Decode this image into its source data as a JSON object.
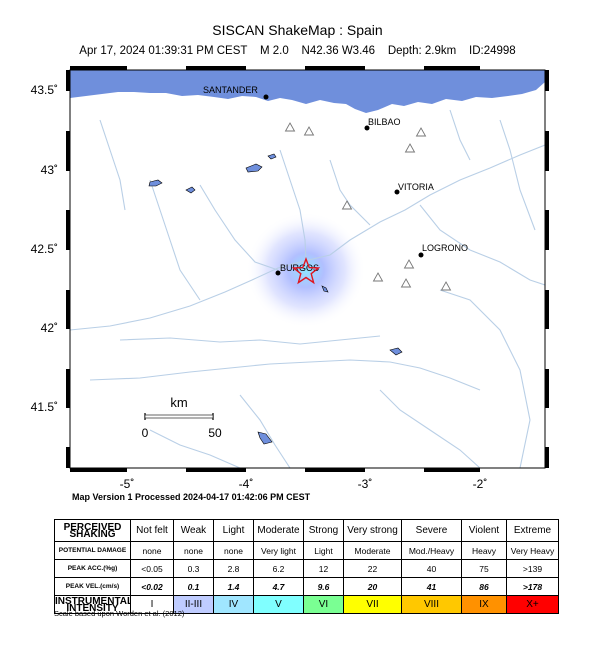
{
  "header": {
    "title": "SISCAN ShakeMap : Spain",
    "subtitle": "Apr 17, 2024 01:39:31 PM CEST    M 2.0    N42.36 W3.46    Depth: 2.9km    ID:24998"
  },
  "map": {
    "lat_ticks": [
      "43.5˚",
      "43˚",
      "42.5˚",
      "42˚",
      "41.5˚"
    ],
    "lon_ticks": [
      "-5˚",
      "-4˚",
      "-3˚",
      "-2˚"
    ],
    "cities": [
      "SANTANDER",
      "BILBAO",
      "VITORIA",
      "LOGRONO",
      "BURGOS"
    ],
    "scale_bar": {
      "unit": "km",
      "start": "0",
      "end": "50"
    },
    "colors": {
      "sea": "#6f8fdc",
      "river": "#b9cfe6",
      "epicenter": "#e0141e",
      "intensity_glow": "#9aa8ff"
    }
  },
  "version_text": "Map Version 1 Processed 2024-04-17 01:42:06 PM CEST",
  "legend": {
    "rows": [
      {
        "head": "PERCEIVED SHAKING",
        "cells": [
          "Not felt",
          "Weak",
          "Light",
          "Moderate",
          "Strong",
          "Very strong",
          "Severe",
          "Violent",
          "Extreme"
        ]
      },
      {
        "head": "POTENTIAL DAMAGE",
        "cells": [
          "none",
          "none",
          "none",
          "Very light",
          "Light",
          "Moderate",
          "Mod./Heavy",
          "Heavy",
          "Very Heavy"
        ]
      },
      {
        "head": "PEAK ACC.(%g)",
        "cells": [
          "<0.05",
          "0.3",
          "2.8",
          "6.2",
          "12",
          "22",
          "40",
          "75",
          ">139"
        ]
      },
      {
        "head": "PEAK VEL.(cm/s)",
        "cells": [
          "<0.02",
          "0.1",
          "1.4",
          "4.7",
          "9.6",
          "20",
          "41",
          "86",
          ">178"
        ]
      },
      {
        "head": "INSTRUMENTAL INTENSITY",
        "cells": [
          "I",
          "II-III",
          "IV",
          "V",
          "VI",
          "VII",
          "VIII",
          "IX",
          "X+"
        ]
      }
    ],
    "intensity_colors": [
      "#ffffff",
      "#bfccff",
      "#a0e6ff",
      "#80ffff",
      "#7aff93",
      "#ffff00",
      "#ffc800",
      "#ff9100",
      "#ff0000"
    ]
  },
  "scale_note": "Scale based upon Worden et al. (2012)"
}
